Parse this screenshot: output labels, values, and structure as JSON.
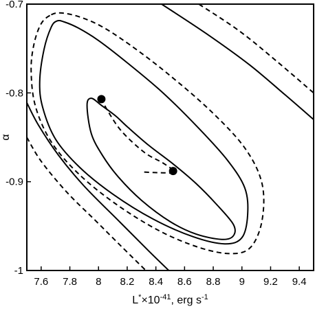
{
  "chart_data": {
    "type": "contour",
    "xlabel_main": "L",
    "xlabel_sup1": "*",
    "xlabel_mid": "×10",
    "xlabel_sup2": "-41",
    "xlabel_tail": ", erg s",
    "xlabel_sup3": "-1",
    "ylabel": "α",
    "xlim": [
      7.5,
      9.5
    ],
    "ylim": [
      -1.0,
      -0.7
    ],
    "x_ticks": [
      7.6,
      7.8,
      8,
      8.2,
      8.4,
      8.6,
      8.8,
      9,
      9.2,
      9.4
    ],
    "x_tick_labels": [
      "7.6",
      "7.8",
      "8",
      "8.2",
      "8.4",
      "8.6",
      "8.8",
      "9",
      "9.2",
      "9.4"
    ],
    "y_ticks": [
      -0.7,
      -0.8,
      -0.9,
      -1.0
    ],
    "y_tick_labels": [
      "-0.7",
      "-0.8",
      "-0.9",
      "-1"
    ],
    "grid": false,
    "series": [
      {
        "style": "solid",
        "kind": "closed",
        "points": [
          [
            7.92,
            -0.814
          ],
          [
            7.95,
            -0.846
          ],
          [
            8.03,
            -0.871
          ],
          [
            8.14,
            -0.895
          ],
          [
            8.3,
            -0.921
          ],
          [
            8.5,
            -0.945
          ],
          [
            8.68,
            -0.959
          ],
          [
            8.86,
            -0.965
          ],
          [
            8.94,
            -0.961
          ],
          [
            8.94,
            -0.948
          ],
          [
            8.82,
            -0.925
          ],
          [
            8.68,
            -0.902
          ],
          [
            8.52,
            -0.88
          ],
          [
            8.35,
            -0.859
          ],
          [
            8.2,
            -0.838
          ],
          [
            8.12,
            -0.826
          ],
          [
            8.02,
            -0.814
          ],
          [
            7.95,
            -0.806
          ]
        ]
      },
      {
        "style": "solid",
        "kind": "closed",
        "points": [
          [
            7.71,
            -0.719
          ],
          [
            7.76,
            -0.72
          ],
          [
            7.86,
            -0.727
          ],
          [
            8.0,
            -0.741
          ],
          [
            8.2,
            -0.766
          ],
          [
            8.45,
            -0.8
          ],
          [
            8.7,
            -0.84
          ],
          [
            8.9,
            -0.876
          ],
          [
            9.02,
            -0.907
          ],
          [
            9.04,
            -0.937
          ],
          [
            9.0,
            -0.963
          ],
          [
            8.88,
            -0.97
          ],
          [
            8.66,
            -0.962
          ],
          [
            8.38,
            -0.942
          ],
          [
            8.1,
            -0.914
          ],
          [
            7.87,
            -0.884
          ],
          [
            7.7,
            -0.852
          ],
          [
            7.61,
            -0.816
          ],
          [
            7.59,
            -0.787
          ],
          [
            7.62,
            -0.751
          ],
          [
            7.67,
            -0.726
          ]
        ]
      },
      {
        "style": "dashed",
        "kind": "closed",
        "points": [
          [
            7.67,
            -0.712
          ],
          [
            7.74,
            -0.71
          ],
          [
            7.86,
            -0.714
          ],
          [
            8.02,
            -0.725
          ],
          [
            8.22,
            -0.746
          ],
          [
            8.48,
            -0.778
          ],
          [
            8.78,
            -0.82
          ],
          [
            9.02,
            -0.862
          ],
          [
            9.14,
            -0.902
          ],
          [
            9.14,
            -0.944
          ],
          [
            9.06,
            -0.974
          ],
          [
            8.92,
            -0.981
          ],
          [
            8.7,
            -0.974
          ],
          [
            8.42,
            -0.955
          ],
          [
            8.12,
            -0.925
          ],
          [
            7.86,
            -0.891
          ],
          [
            7.67,
            -0.855
          ],
          [
            7.56,
            -0.815
          ],
          [
            7.53,
            -0.775
          ],
          [
            7.55,
            -0.745
          ],
          [
            7.6,
            -0.722
          ]
        ]
      },
      {
        "style": "dashed",
        "kind": "open",
        "points": [
          [
            8.02,
            -0.806
          ],
          [
            8.06,
            -0.819
          ],
          [
            8.16,
            -0.843
          ],
          [
            8.32,
            -0.867
          ],
          [
            8.45,
            -0.879
          ],
          [
            8.53,
            -0.889
          ],
          [
            8.45,
            -0.89
          ],
          [
            8.3,
            -0.889
          ]
        ]
      },
      {
        "style": "solid",
        "kind": "open",
        "points": [
          [
            8.44,
            -0.7
          ],
          [
            8.75,
            -0.733
          ],
          [
            9.05,
            -0.768
          ],
          [
            9.3,
            -0.802
          ],
          [
            9.5,
            -0.83
          ]
        ]
      },
      {
        "style": "dashed",
        "kind": "open",
        "points": [
          [
            8.7,
            -0.7
          ],
          [
            8.98,
            -0.73
          ],
          [
            9.24,
            -0.764
          ],
          [
            9.5,
            -0.8
          ]
        ]
      },
      {
        "style": "solid",
        "kind": "open",
        "points": [
          [
            7.5,
            -0.811
          ],
          [
            7.58,
            -0.836
          ],
          [
            7.72,
            -0.87
          ],
          [
            7.9,
            -0.905
          ],
          [
            8.14,
            -0.944
          ],
          [
            8.35,
            -0.978
          ],
          [
            8.49,
            -1.0
          ]
        ]
      },
      {
        "style": "dashed",
        "kind": "open",
        "points": [
          [
            7.5,
            -0.85
          ],
          [
            7.6,
            -0.877
          ],
          [
            7.78,
            -0.912
          ],
          [
            7.98,
            -0.944
          ],
          [
            8.16,
            -0.973
          ],
          [
            8.33,
            -1.0
          ]
        ]
      }
    ],
    "markers": [
      {
        "x": 8.02,
        "y": -0.807
      },
      {
        "x": 8.52,
        "y": -0.888
      }
    ]
  }
}
